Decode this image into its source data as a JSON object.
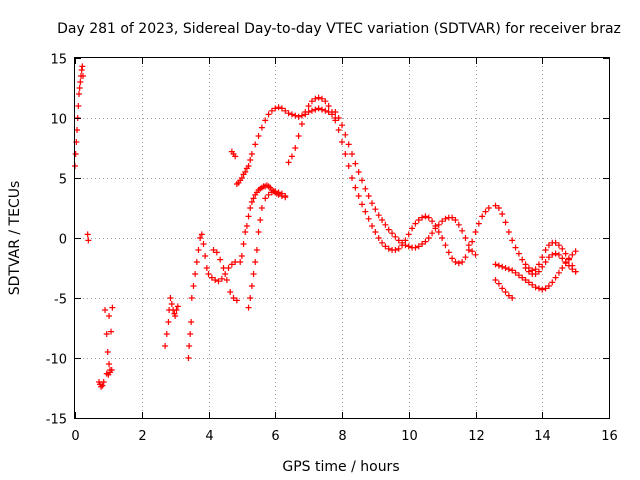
{
  "chart_data": {
    "type": "scatter",
    "title": "Day 281 of 2023, Sidereal Day-to-day VTEC variation (SDTVAR) for receiver braz",
    "xlabel": "GPS time / hours",
    "ylabel": "SDTVAR / TECUs",
    "xlim": [
      0,
      16
    ],
    "ylim": [
      -15,
      15
    ],
    "x_ticks": [
      0,
      2,
      4,
      6,
      8,
      10,
      12,
      14,
      16
    ],
    "y_ticks": [
      -15,
      -10,
      -5,
      0,
      5,
      10,
      15
    ],
    "x_tick_labels": [
      "0",
      "2",
      "4",
      "6",
      "8",
      "10",
      "12",
      "14",
      "16"
    ],
    "y_tick_labels": [
      "-15",
      "-10",
      "-5",
      "0",
      "5",
      "10",
      "15"
    ],
    "grid": true,
    "marker": "+",
    "marker_color": "#ff0000",
    "series": [
      {
        "name": "SDTVAR",
        "x": [
          0.0,
          0.02,
          0.04,
          0.06,
          0.08,
          0.1,
          0.12,
          0.14,
          0.16,
          0.18,
          0.2,
          0.22,
          0.24,
          0.38,
          0.4,
          0.72,
          0.75,
          0.78,
          0.82,
          0.86,
          0.9,
          0.95,
          0.98,
          1.02,
          1.05,
          0.95,
          1.0,
          1.05,
          1.1,
          1.02,
          1.08,
          1.12,
          2.7,
          2.75,
          2.8,
          2.82,
          2.86,
          2.9,
          2.94,
          2.98,
          3.0,
          3.04,
          3.08,
          3.4,
          3.42,
          3.45,
          3.48,
          3.5,
          3.55,
          3.6,
          3.65,
          3.7,
          3.75,
          3.8,
          3.85,
          3.9,
          3.95,
          4.0,
          4.1,
          4.2,
          4.3,
          4.4,
          4.5,
          4.6,
          4.7,
          4.8,
          4.15,
          4.25,
          4.35,
          4.45,
          4.55,
          4.65,
          4.75,
          4.85,
          4.95,
          5.0,
          5.05,
          5.1,
          5.15,
          5.2,
          5.25,
          5.3,
          5.35,
          5.4,
          5.45,
          5.5,
          5.55,
          5.6,
          5.65,
          5.7,
          5.75,
          5.8,
          5.85,
          5.9,
          5.95,
          6.0,
          6.05,
          6.1,
          6.2,
          6.3,
          5.2,
          5.25,
          5.3,
          5.35,
          5.4,
          5.45,
          5.5,
          5.55,
          5.6,
          5.7,
          5.8,
          5.9,
          6.0,
          6.1,
          6.2,
          6.3,
          4.7,
          4.75,
          4.8,
          4.85,
          4.9,
          4.95,
          5.0,
          5.05,
          5.1,
          5.15,
          5.2,
          5.25,
          5.3,
          5.4,
          5.5,
          5.6,
          5.7,
          5.8,
          5.9,
          6.0,
          6.1,
          6.2,
          6.3,
          6.4,
          6.5,
          6.6,
          6.7,
          6.8,
          6.9,
          7.0,
          7.1,
          7.2,
          7.3,
          7.4,
          7.5,
          7.6,
          7.7,
          7.8,
          6.4,
          6.5,
          6.6,
          6.7,
          6.8,
          6.9,
          7.0,
          7.1,
          7.2,
          7.3,
          7.4,
          7.5,
          7.6,
          7.7,
          7.8,
          7.9,
          8.0,
          8.1,
          8.2,
          8.3,
          8.4,
          8.5,
          8.6,
          8.7,
          8.8,
          8.9,
          9.0,
          9.1,
          9.2,
          9.3,
          9.4,
          9.5,
          9.6,
          9.7,
          9.8,
          9.9,
          10.0,
          10.1,
          10.2,
          10.3,
          10.4,
          10.5,
          10.6,
          10.7,
          10.8,
          10.9,
          11.0,
          11.1,
          11.2,
          11.3,
          11.4,
          11.5,
          11.6,
          11.7,
          11.8,
          11.9,
          12.0,
          12.1,
          12.2,
          12.3,
          12.4,
          7.8,
          7.9,
          8.0,
          8.1,
          8.2,
          8.3,
          8.4,
          8.5,
          8.6,
          8.7,
          8.8,
          8.9,
          9.0,
          9.1,
          9.2,
          9.3,
          9.4,
          9.5,
          9.6,
          9.7,
          9.8,
          9.9,
          10.0,
          10.1,
          10.2,
          10.3,
          10.4,
          10.5,
          10.6,
          10.7,
          10.8,
          10.9,
          11.0,
          11.1,
          11.2,
          11.3,
          11.4,
          11.5,
          11.6,
          11.7,
          11.8,
          11.9,
          12.0,
          12.6,
          12.7,
          12.8,
          12.9,
          13.0,
          13.1,
          13.2,
          13.3,
          13.4,
          13.5,
          13.6,
          13.7,
          13.8,
          13.9,
          14.0,
          14.1,
          14.2,
          14.3,
          14.4,
          14.5,
          14.6,
          14.7,
          14.8,
          14.9,
          15.0,
          12.6,
          12.7,
          12.8,
          12.9,
          13.0,
          13.1,
          13.2,
          13.3,
          13.4,
          13.5,
          13.6,
          13.7,
          13.8,
          13.9,
          14.0,
          14.1,
          14.2,
          14.3,
          14.4,
          14.5,
          14.6,
          14.7,
          14.8,
          14.9,
          15.0,
          12.6,
          12.7,
          12.8,
          12.9,
          13.0,
          13.1,
          13.5,
          13.6,
          13.7,
          13.8,
          13.9,
          14.0,
          14.1,
          14.2,
          14.3,
          14.4,
          14.5,
          14.6,
          14.7,
          14.8,
          14.9,
          15.0
        ],
        "y": [
          6.0,
          7.0,
          8.0,
          9.0,
          10.0,
          11.0,
          12.0,
          12.5,
          13.0,
          13.5,
          14.0,
          14.3,
          13.5,
          0.3,
          -0.2,
          -12.0,
          -12.2,
          -12.4,
          -12.3,
          -12.0,
          -6.0,
          -8.0,
          -9.5,
          -10.5,
          -11.0,
          -11.3,
          -11.4,
          -11.2,
          -11.0,
          -6.5,
          -7.8,
          -5.8,
          -9.0,
          -8.0,
          -7.0,
          -6.0,
          -5.0,
          -5.5,
          -6.0,
          -6.3,
          -6.5,
          -6.0,
          -5.7,
          -10.0,
          -9.0,
          -8.0,
          -7.0,
          -5.0,
          -4.0,
          -3.0,
          -2.0,
          -1.0,
          0.0,
          0.3,
          -0.5,
          -1.5,
          -2.5,
          -3.0,
          -3.3,
          -3.5,
          -3.6,
          -3.4,
          -3.0,
          -2.5,
          -2.2,
          -2.0,
          -1.0,
          -1.2,
          -1.8,
          -2.5,
          -3.5,
          -4.5,
          -5.0,
          -5.2,
          -2.0,
          -1.5,
          -0.5,
          0.5,
          1.0,
          1.8,
          2.5,
          3.0,
          3.3,
          3.6,
          3.8,
          4.0,
          4.1,
          4.2,
          4.3,
          4.3,
          4.4,
          4.3,
          4.2,
          4.0,
          3.9,
          3.8,
          3.7,
          3.6,
          3.5,
          3.4,
          -5.8,
          -5.0,
          -4.0,
          -3.0,
          -2.0,
          -1.0,
          0.5,
          1.5,
          2.5,
          3.3,
          3.6,
          3.8,
          3.9,
          3.8,
          3.7,
          3.5,
          7.2,
          7.0,
          6.8,
          4.5,
          4.6,
          4.8,
          5.0,
          5.3,
          5.5,
          5.8,
          6.0,
          6.5,
          7.0,
          7.8,
          8.5,
          9.2,
          9.8,
          10.3,
          10.6,
          10.8,
          10.9,
          10.8,
          10.6,
          10.4,
          10.3,
          10.2,
          10.1,
          10.2,
          10.3,
          10.5,
          10.6,
          10.7,
          10.8,
          10.7,
          10.6,
          10.5,
          10.3,
          10.0,
          6.3,
          6.8,
          7.5,
          8.5,
          9.5,
          10.5,
          11.0,
          11.4,
          11.6,
          11.7,
          11.6,
          11.4,
          11.0,
          10.5,
          9.8,
          9.0,
          8.0,
          7.0,
          6.0,
          5.0,
          4.2,
          3.5,
          2.8,
          2.2,
          1.6,
          1.0,
          0.5,
          0.0,
          -0.4,
          -0.7,
          -0.9,
          -1.0,
          -1.0,
          -0.9,
          -0.6,
          -0.2,
          0.3,
          0.8,
          1.2,
          1.5,
          1.7,
          1.8,
          1.7,
          1.4,
          1.0,
          0.5,
          0.0,
          -0.6,
          -1.2,
          -1.7,
          -2.0,
          -2.1,
          -2.0,
          -1.6,
          -1.0,
          -0.3,
          0.5,
          1.2,
          1.8,
          2.2,
          2.5,
          10.5,
          10.0,
          9.4,
          8.6,
          7.8,
          7.0,
          6.2,
          5.5,
          4.8,
          4.1,
          3.5,
          2.9,
          2.4,
          1.9,
          1.5,
          1.1,
          0.7,
          0.4,
          0.1,
          -0.2,
          -0.4,
          -0.6,
          -0.7,
          -0.8,
          -0.8,
          -0.7,
          -0.5,
          -0.3,
          0.0,
          0.4,
          0.8,
          1.1,
          1.4,
          1.6,
          1.7,
          1.7,
          1.5,
          1.1,
          0.6,
          0.0,
          -0.6,
          -1.1,
          -1.4,
          2.7,
          2.5,
          2.0,
          1.3,
          0.5,
          -0.2,
          -0.8,
          -1.3,
          -1.8,
          -2.2,
          -2.5,
          -2.7,
          -2.6,
          -2.2,
          -1.6,
          -1.0,
          -0.6,
          -0.4,
          -0.4,
          -0.6,
          -0.9,
          -1.3,
          -1.8,
          -2.3,
          -2.8,
          -2.2,
          -2.3,
          -2.4,
          -2.5,
          -2.6,
          -2.7,
          -2.9,
          -3.1,
          -3.3,
          -3.5,
          -3.7,
          -3.9,
          -4.1,
          -4.2,
          -4.3,
          -4.2,
          -4.0,
          -3.7,
          -3.3,
          -2.9,
          -2.5,
          -2.1,
          -1.7,
          -1.4,
          -1.1,
          -3.5,
          -3.8,
          -4.2,
          -4.5,
          -4.8,
          -5.0,
          -2.5,
          -2.8,
          -3.0,
          -3.0,
          -2.8,
          -2.4,
          -2.0,
          -1.6,
          -1.4,
          -1.3,
          -1.4,
          -1.7,
          -2.0,
          -2.3,
          -2.6,
          -2.8
        ]
      }
    ]
  }
}
